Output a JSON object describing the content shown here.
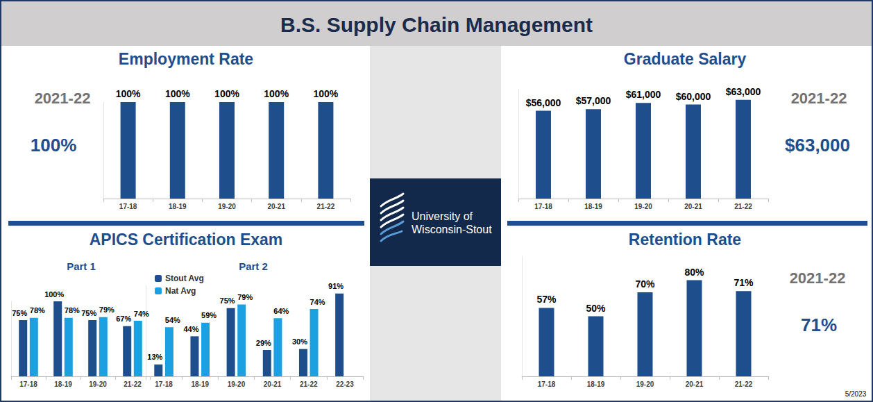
{
  "title": "B.S. Supply Chain Management",
  "logo_text": [
    "University of",
    "Wisconsin-Stout"
  ],
  "footnote": "5/2023",
  "chart_data": [
    {
      "type": "bar",
      "title": "Employment Rate",
      "annotations": [
        "2021-22",
        "100%"
      ],
      "categories": [
        "17-18",
        "18-19",
        "19-20",
        "20-21",
        "21-22"
      ],
      "values": [
        100,
        100,
        100,
        100,
        100
      ],
      "value_labels": [
        "100%",
        "100%",
        "100%",
        "100%",
        "100%"
      ],
      "color": "#1f4e8c",
      "ylim": [
        0,
        100
      ],
      "grid": false,
      "data_labels": true,
      "tick_labels": "x"
    },
    {
      "type": "bar",
      "title": "Graduate Salary",
      "annotations": [
        "2021-22",
        "$63,000"
      ],
      "categories": [
        "17-18",
        "18-19",
        "19-20",
        "20-21",
        "21-22"
      ],
      "values": [
        56000,
        57000,
        61000,
        60000,
        63000
      ],
      "value_labels": [
        "$56,000",
        "$57,000",
        "$61,000",
        "$60,000",
        "$63,000"
      ],
      "color": "#1f4e8c",
      "ylim": [
        0,
        70000
      ],
      "grid": false,
      "data_labels": true,
      "tick_labels": "x"
    },
    {
      "type": "bar",
      "title": "APICS Certification Exam",
      "subtitle": "Part 1",
      "categories": [
        "17-18",
        "18-19",
        "19-20",
        "21-22"
      ],
      "series": [
        {
          "name": "Stout Avg",
          "color": "#1f4e8c",
          "values": [
            75,
            100,
            75,
            67
          ],
          "value_labels": [
            "75%",
            "100%",
            "75%",
            "67%"
          ]
        },
        {
          "name": "Nat Avg",
          "color": "#1ba1e2",
          "values": [
            78,
            78,
            79,
            74
          ],
          "value_labels": [
            "78%",
            "78%",
            "79%",
            "74%"
          ]
        }
      ],
      "ylim": [
        0,
        100
      ],
      "grid": false,
      "data_labels": true,
      "tick_labels": "x"
    },
    {
      "type": "bar",
      "subtitle": "Part 2",
      "categories": [
        "17-18",
        "18-19",
        "19-20",
        "20-21",
        "21-22",
        "22-23"
      ],
      "series": [
        {
          "name": "Stout Avg",
          "color": "#1f4e8c",
          "values": [
            13,
            44,
            75,
            29,
            30,
            91
          ],
          "value_labels": [
            "13%",
            "44%",
            "75%",
            "29%",
            "30%",
            "91%"
          ]
        },
        {
          "name": "Nat Avg",
          "color": "#1ba1e2",
          "values": [
            54,
            59,
            79,
            64,
            74,
            null
          ],
          "value_labels": [
            "54%",
            "59%",
            "79%",
            "64%",
            "74%",
            null
          ]
        }
      ],
      "legend": "upper left",
      "ylim": [
        0,
        100
      ],
      "grid": false,
      "data_labels": true,
      "tick_labels": "x"
    },
    {
      "type": "bar",
      "title": "Retention Rate",
      "annotations": [
        "2021-22",
        "71%"
      ],
      "categories": [
        "17-18",
        "18-19",
        "19-20",
        "20-21",
        "21-22"
      ],
      "values": [
        57,
        50,
        70,
        80,
        71
      ],
      "value_labels": [
        "57%",
        "50%",
        "70%",
        "80%",
        "71%"
      ],
      "color": "#1f4e8c",
      "ylim": [
        0,
        100
      ],
      "grid": false,
      "data_labels": true,
      "tick_labels": "x"
    }
  ]
}
